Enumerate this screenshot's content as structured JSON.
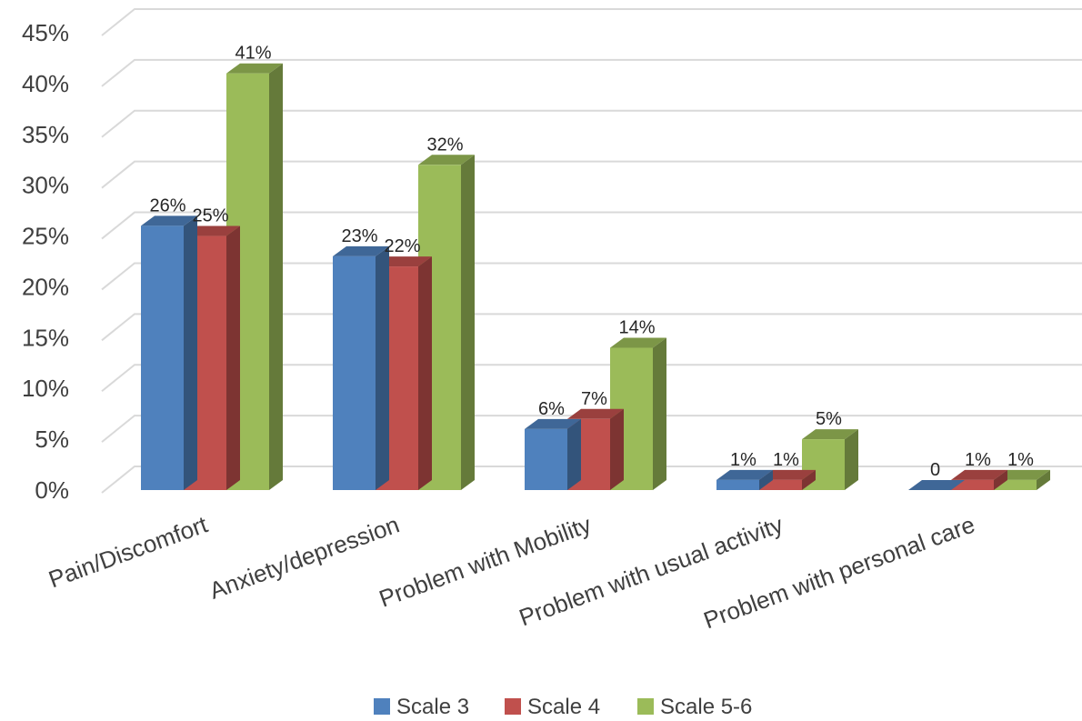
{
  "chart_data": {
    "type": "bar",
    "style": "3d-clustered-column",
    "title": "",
    "xlabel": "",
    "ylabel": "",
    "ylim": [
      0,
      45
    ],
    "yticks": [
      "0%",
      "5%",
      "10%",
      "15%",
      "20%",
      "25%",
      "30%",
      "35%",
      "40%",
      "45%"
    ],
    "grid": true,
    "legend_position": "bottom",
    "categories": [
      "Pain/Discomfort",
      "Anxiety/depression",
      "Problem  with Mobility",
      "Problem with usual activity",
      "Problem with personal care"
    ],
    "series": [
      {
        "name": "Scale 3",
        "color": "#4F81BD",
        "values": [
          26,
          23,
          6,
          1,
          0
        ],
        "labels": [
          "26%",
          "23%",
          "6%",
          "1%",
          "0"
        ]
      },
      {
        "name": "Scale 4",
        "color": "#C0504D",
        "values": [
          25,
          22,
          7,
          1,
          1
        ],
        "labels": [
          "25%",
          "22%",
          "7%",
          "1%",
          "1%"
        ]
      },
      {
        "name": "Scale 5-6",
        "color": "#9BBB59",
        "values": [
          41,
          32,
          14,
          5,
          1
        ],
        "labels": [
          "41%",
          "32%",
          "14%",
          "5%",
          "1%"
        ]
      }
    ]
  }
}
